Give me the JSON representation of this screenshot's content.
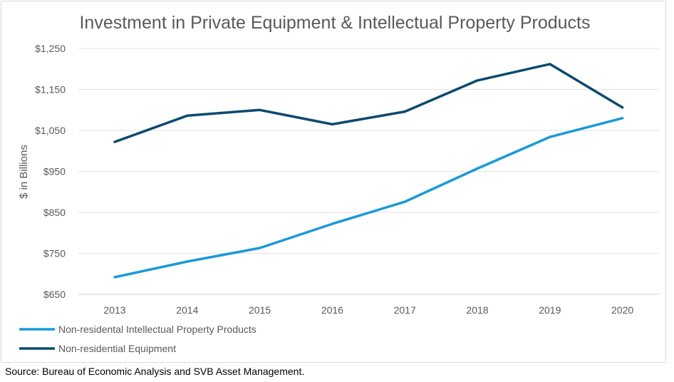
{
  "chart_data": {
    "type": "line",
    "title": "Investment in Private Equipment & Intellectual Property Products",
    "ylabel": "$ in Billions",
    "xlabel": "",
    "categories": [
      "2013",
      "2014",
      "2015",
      "2016",
      "2017",
      "2018",
      "2019",
      "2020"
    ],
    "ylim": [
      650,
      1250
    ],
    "yticks": [
      650,
      750,
      850,
      950,
      1050,
      1150,
      1250
    ],
    "ytick_labels": [
      "$650",
      "$750",
      "$850",
      "$950",
      "$1,050",
      "$1,150",
      "$1,250"
    ],
    "grid": true,
    "legend_position": "bottom-left",
    "series": [
      {
        "name": "Non-residental Intellectual Property Products",
        "color": "#1a9ad7",
        "values": [
          692,
          730,
          763,
          822,
          876,
          957,
          1034,
          1080
        ]
      },
      {
        "name": "Non-residential Equipment",
        "color": "#0c4a6e",
        "values": [
          1022,
          1086,
          1100,
          1065,
          1096,
          1172,
          1212,
          1106
        ]
      }
    ]
  },
  "source": "Source: Bureau of Economic Analysis and SVB Asset Management."
}
